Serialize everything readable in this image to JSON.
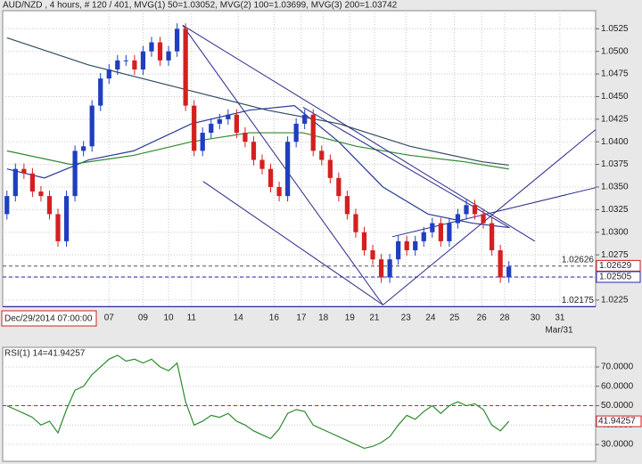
{
  "chart_data": [
    {
      "type": "candlestick",
      "header": "AUD/NZD , 4 hours, # 120 / 401, MVG(1) 50=1.03052, MVG(2) 100=1.03699, MVG(3) 200=1.03742",
      "x_start_label": "Dec/29/2014 07:00:00",
      "x_end_label": "Mar/31",
      "xlim": [
        -0.5,
        69.2
      ],
      "ylim": [
        1.0218,
        1.0545
      ],
      "xticks": [
        {
          "value": 12,
          "label": "07"
        },
        {
          "value": 16,
          "label": "09"
        },
        {
          "value": 19,
          "label": "10"
        },
        {
          "value": 21.7,
          "label": "11"
        },
        {
          "value": 27.2,
          "label": "14"
        },
        {
          "value": 31.4,
          "label": "16"
        },
        {
          "value": 34.6,
          "label": "17"
        },
        {
          "value": 37.2,
          "label": "18"
        },
        {
          "value": 40.3,
          "label": "19"
        },
        {
          "value": 43.2,
          "label": "21"
        },
        {
          "value": 46.9,
          "label": "23"
        },
        {
          "value": 49.8,
          "label": "24"
        },
        {
          "value": 52.6,
          "label": "25"
        },
        {
          "value": 55.8,
          "label": "26"
        },
        {
          "value": 58.5,
          "label": "28"
        },
        {
          "value": 62.1,
          "label": "30"
        },
        {
          "value": 65,
          "label": "31"
        }
      ],
      "yticks": [
        {
          "value": 1.0225,
          "label": "1.0225"
        },
        {
          "value": 1.025,
          "label": "1.0250"
        },
        {
          "value": 1.0275,
          "label": "1.0275"
        },
        {
          "value": 1.03,
          "label": "1.0300"
        },
        {
          "value": 1.0325,
          "label": "1.0325"
        },
        {
          "value": 1.035,
          "label": "1.0350"
        },
        {
          "value": 1.0375,
          "label": "1.0375"
        },
        {
          "value": 1.04,
          "label": "1.0400"
        },
        {
          "value": 1.0425,
          "label": "1.0425"
        },
        {
          "value": 1.045,
          "label": "1.0450"
        },
        {
          "value": 1.0475,
          "label": "1.0475"
        },
        {
          "value": 1.05,
          "label": "1.0500"
        },
        {
          "value": 1.0525,
          "label": "1.0525"
        }
      ],
      "grid": true,
      "up_color": "#1f3fbf",
      "down_color": "#d42020",
      "open": [
        1.032,
        1.034,
        1.037,
        1.0365,
        1.0345,
        1.034,
        1.032,
        1.029,
        1.034,
        1.039,
        1.0395,
        1.044,
        1.047,
        1.048,
        1.049,
        1.049,
        1.048,
        1.05,
        1.051,
        1.049,
        1.05,
        1.0525,
        1.044,
        1.039,
        1.041,
        1.042,
        1.0425,
        1.043,
        1.041,
        1.04,
        1.038,
        1.037,
        1.035,
        1.034,
        1.04,
        1.042,
        1.043,
        1.039,
        1.038,
        1.036,
        1.034,
        1.032,
        1.03,
        1.028,
        1.027,
        1.025,
        1.027,
        1.029,
        1.028,
        1.029,
        1.03,
        1.031,
        1.029,
        1.031,
        1.032,
        1.033,
        1.032,
        1.031,
        1.028,
        1.025
      ],
      "high": [
        1.0346,
        1.0376,
        1.0376,
        1.0371,
        1.0351,
        1.0346,
        1.0326,
        1.0346,
        1.0396,
        1.0401,
        1.0446,
        1.0476,
        1.0486,
        1.0496,
        1.0496,
        1.0496,
        1.0506,
        1.0516,
        1.0516,
        1.0506,
        1.0531,
        1.0531,
        1.0446,
        1.0416,
        1.0426,
        1.0431,
        1.0436,
        1.0436,
        1.0416,
        1.0406,
        1.0386,
        1.0376,
        1.0356,
        1.0406,
        1.0426,
        1.0436,
        1.0436,
        1.0396,
        1.0386,
        1.0366,
        1.0346,
        1.0326,
        1.0306,
        1.0286,
        1.0276,
        1.0276,
        1.0296,
        1.0296,
        1.0296,
        1.0306,
        1.0316,
        1.0316,
        1.0316,
        1.0326,
        1.0336,
        1.0336,
        1.0326,
        1.0316,
        1.0286,
        1.0268
      ],
      "low": [
        1.0314,
        1.0334,
        1.0359,
        1.0339,
        1.0334,
        1.0314,
        1.0284,
        1.0284,
        1.0334,
        1.0384,
        1.0389,
        1.0434,
        1.0464,
        1.0474,
        1.0484,
        1.0474,
        1.0474,
        1.0494,
        1.0484,
        1.0484,
        1.0494,
        1.0434,
        1.0384,
        1.0384,
        1.0404,
        1.0414,
        1.0419,
        1.0404,
        1.0394,
        1.0374,
        1.0364,
        1.0344,
        1.0334,
        1.0334,
        1.0394,
        1.0414,
        1.0384,
        1.0374,
        1.0354,
        1.0334,
        1.0314,
        1.0294,
        1.0274,
        1.0264,
        1.0244,
        1.0244,
        1.0264,
        1.0274,
        1.0274,
        1.0284,
        1.0294,
        1.0284,
        1.0284,
        1.0304,
        1.0314,
        1.0314,
        1.0304,
        1.0274,
        1.0244,
        1.0244
      ],
      "close": [
        1.034,
        1.037,
        1.0365,
        1.0345,
        1.034,
        1.032,
        1.029,
        1.034,
        1.039,
        1.0395,
        1.044,
        1.047,
        1.048,
        1.049,
        1.049,
        1.048,
        1.05,
        1.051,
        1.049,
        1.05,
        1.0525,
        1.044,
        1.039,
        1.041,
        1.042,
        1.0425,
        1.043,
        1.041,
        1.04,
        1.038,
        1.037,
        1.035,
        1.034,
        1.04,
        1.042,
        1.043,
        1.039,
        1.038,
        1.036,
        1.034,
        1.032,
        1.03,
        1.028,
        1.027,
        1.025,
        1.027,
        1.029,
        1.028,
        1.029,
        1.03,
        1.031,
        1.029,
        1.031,
        1.032,
        1.033,
        1.032,
        1.031,
        1.028,
        1.025,
        1.0262
      ],
      "series": [
        {
          "name": "MVG(1) 50",
          "color": "#2a3a9a",
          "x": [
            0,
            4.4,
            9.6,
            14.9,
            21.7,
            28.5,
            33.8,
            39,
            44.2,
            49.5,
            54.7,
            59
          ],
          "values": [
            1.037,
            1.036,
            1.038,
            1.039,
            1.042,
            1.0435,
            1.044,
            1.04,
            1.035,
            1.032,
            1.031,
            1.03052
          ]
        },
        {
          "name": "MVG(2) 100",
          "color": "#2e8a2e",
          "x": [
            0,
            7.5,
            14.9,
            21.7,
            28.5,
            34.8,
            41.1,
            47.4,
            53.7,
            59
          ],
          "values": [
            1.039,
            1.0375,
            1.0385,
            1.04,
            1.041,
            1.041,
            1.0395,
            1.0385,
            1.0378,
            1.03699
          ]
        },
        {
          "name": "MVG(3) 200",
          "color": "#2f4f5f",
          "x": [
            0,
            9.6,
            20.1,
            30.6,
            39,
            47.4,
            55.8,
            59
          ],
          "values": [
            1.0515,
            1.0485,
            1.046,
            1.0435,
            1.042,
            1.0395,
            1.0378,
            1.03742
          ]
        }
      ],
      "trendlines": [
        {
          "color": "#2a2a8a",
          "x": [
            20.65,
            44.2
          ],
          "values": [
            1.05289,
            1.02196
          ]
        },
        {
          "color": "#2a2a8a",
          "x": [
            23.06,
            44.2
          ],
          "values": [
            1.03562,
            1.02196
          ]
        },
        {
          "color": "#2a2a8a",
          "x": [
            20.65,
            62.05
          ],
          "values": [
            1.05289,
            1.02901
          ]
        },
        {
          "color": "#2a2a8a",
          "x": [
            44.2,
            69.2
          ],
          "values": [
            1.02196,
            1.04135
          ]
        },
        {
          "color": "#2a2a8a",
          "x": [
            45.3,
            69.2
          ],
          "values": [
            1.0295,
            1.03493
          ]
        },
        {
          "color": "#2a2a8a",
          "x": [
            34.8,
            59.1
          ],
          "values": [
            1.04382,
            1.03049
          ]
        }
      ],
      "levels": [
        {
          "value": 1.02626,
          "label": "1.02626",
          "color": "#555",
          "dash": true
        },
        {
          "value": 1.02505,
          "color": "#2a2ab0",
          "dash": true
        },
        {
          "value": 1.02175,
          "label": "1.02175",
          "color": "#2a2ab0",
          "dash": false
        }
      ],
      "price_boxes": [
        {
          "value": 1.02629,
          "label": "1.02629",
          "color": "#d42020"
        },
        {
          "value": 1.02505,
          "label": "1.02505",
          "color": "#2a2ab0"
        }
      ]
    },
    {
      "type": "line",
      "title": "RSI(1) 14=41.94257",
      "xlim": [
        -0.5,
        69.2
      ],
      "ylim": [
        21.3,
        80.1
      ],
      "yticks": [
        {
          "value": 30,
          "label": "30.0000"
        },
        {
          "value": 40,
          "label": "40.0000"
        },
        {
          "value": 50,
          "label": "50.0000"
        },
        {
          "value": 60,
          "label": "60.0000"
        },
        {
          "value": 70,
          "label": "70.0000"
        }
      ],
      "grid": true,
      "level": 50,
      "level_color": "#d42020",
      "color": "#2e8a2e",
      "values": [
        50,
        48,
        46,
        44,
        40,
        42,
        36,
        48,
        58,
        60,
        66,
        70,
        74,
        76,
        73,
        74,
        72,
        74,
        70,
        68,
        72,
        52,
        40,
        42,
        45,
        44,
        46,
        42,
        40,
        37,
        35,
        33,
        38,
        46,
        48,
        47,
        40,
        38,
        36,
        34,
        32,
        30,
        28,
        29,
        31,
        34,
        40,
        45,
        43,
        47,
        50,
        46,
        50,
        52,
        50,
        51,
        48,
        40,
        37,
        41.94257
      ],
      "last_box": {
        "value": 41.94257,
        "label": "41.94257",
        "color": "#d42020"
      }
    }
  ]
}
